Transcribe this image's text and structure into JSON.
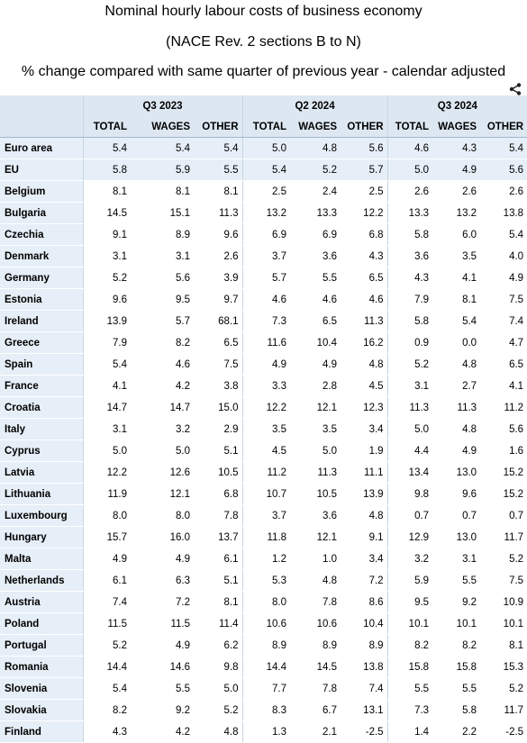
{
  "title": "Nominal hourly labour costs of business economy",
  "subtitle": "(NACE Rev. 2 sections B to N)",
  "unit_line": "% change compared with same quarter of previous year - calendar adjusted",
  "share_icon": "share-icon",
  "periods": [
    "Q3 2023",
    "Q2 2024",
    "Q3 2024"
  ],
  "columns": [
    "TOTAL",
    "WAGES",
    "OTHER"
  ],
  "rows": [
    {
      "name": "Euro area",
      "v": [
        "5.4",
        "5.4",
        "5.4",
        "5.0",
        "4.8",
        "5.6",
        "4.6",
        "4.3",
        "5.4"
      ]
    },
    {
      "name": "EU",
      "v": [
        "5.8",
        "5.9",
        "5.5",
        "5.4",
        "5.2",
        "5.7",
        "5.0",
        "4.9",
        "5.6"
      ]
    },
    {
      "name": "Belgium",
      "v": [
        "8.1",
        "8.1",
        "8.1",
        "2.5",
        "2.4",
        "2.5",
        "2.6",
        "2.6",
        "2.6"
      ]
    },
    {
      "name": "Bulgaria",
      "v": [
        "14.5",
        "15.1",
        "11.3",
        "13.2",
        "13.3",
        "12.2",
        "13.3",
        "13.2",
        "13.8"
      ]
    },
    {
      "name": "Czechia",
      "v": [
        "9.1",
        "8.9",
        "9.6",
        "6.9",
        "6.9",
        "6.8",
        "5.8",
        "6.0",
        "5.4"
      ]
    },
    {
      "name": "Denmark",
      "v": [
        "3.1",
        "3.1",
        "2.6",
        "3.7",
        "3.6",
        "4.3",
        "3.6",
        "3.5",
        "4.0"
      ]
    },
    {
      "name": "Germany",
      "v": [
        "5.2",
        "5.6",
        "3.9",
        "5.7",
        "5.5",
        "6.5",
        "4.3",
        "4.1",
        "4.9"
      ]
    },
    {
      "name": "Estonia",
      "v": [
        "9.6",
        "9.5",
        "9.7",
        "4.6",
        "4.6",
        "4.6",
        "7.9",
        "8.1",
        "7.5"
      ]
    },
    {
      "name": "Ireland",
      "v": [
        "13.9",
        "5.7",
        "68.1",
        "7.3",
        "6.5",
        "11.3",
        "5.8",
        "5.4",
        "7.4"
      ]
    },
    {
      "name": "Greece",
      "v": [
        "7.9",
        "8.2",
        "6.5",
        "11.6",
        "10.4",
        "16.2",
        "0.9",
        "0.0",
        "4.7"
      ]
    },
    {
      "name": "Spain",
      "v": [
        "5.4",
        "4.6",
        "7.5",
        "4.9",
        "4.9",
        "4.8",
        "5.2",
        "4.8",
        "6.5"
      ]
    },
    {
      "name": "France",
      "v": [
        "4.1",
        "4.2",
        "3.8",
        "3.3",
        "2.8",
        "4.5",
        "3.1",
        "2.7",
        "4.1"
      ]
    },
    {
      "name": "Croatia",
      "v": [
        "14.7",
        "14.7",
        "15.0",
        "12.2",
        "12.1",
        "12.3",
        "11.3",
        "11.3",
        "11.2"
      ]
    },
    {
      "name": "Italy",
      "v": [
        "3.1",
        "3.2",
        "2.9",
        "3.5",
        "3.5",
        "3.4",
        "5.0",
        "4.8",
        "5.6"
      ]
    },
    {
      "name": "Cyprus",
      "v": [
        "5.0",
        "5.0",
        "5.1",
        "4.5",
        "5.0",
        "1.9",
        "4.4",
        "4.9",
        "1.6"
      ]
    },
    {
      "name": "Latvia",
      "v": [
        "12.2",
        "12.6",
        "10.5",
        "11.2",
        "11.3",
        "11.1",
        "13.4",
        "13.0",
        "15.2"
      ]
    },
    {
      "name": "Lithuania",
      "v": [
        "11.9",
        "12.1",
        "6.8",
        "10.7",
        "10.5",
        "13.9",
        "9.8",
        "9.6",
        "15.2"
      ]
    },
    {
      "name": "Luxembourg",
      "v": [
        "8.0",
        "8.0",
        "7.8",
        "3.7",
        "3.6",
        "4.8",
        "0.7",
        "0.7",
        "0.7"
      ]
    },
    {
      "name": "Hungary",
      "v": [
        "15.7",
        "16.0",
        "13.7",
        "11.8",
        "12.1",
        "9.1",
        "12.9",
        "13.0",
        "11.7"
      ]
    },
    {
      "name": "Malta",
      "v": [
        "4.9",
        "4.9",
        "6.1",
        "1.2",
        "1.0",
        "3.4",
        "3.2",
        "3.1",
        "5.2"
      ]
    },
    {
      "name": "Netherlands",
      "v": [
        "6.1",
        "6.3",
        "5.1",
        "5.3",
        "4.8",
        "7.2",
        "5.9",
        "5.5",
        "7.5"
      ]
    },
    {
      "name": "Austria",
      "v": [
        "7.4",
        "7.2",
        "8.1",
        "8.0",
        "7.8",
        "8.6",
        "9.5",
        "9.2",
        "10.9"
      ]
    },
    {
      "name": "Poland",
      "v": [
        "11.5",
        "11.5",
        "11.4",
        "10.6",
        "10.6",
        "10.4",
        "10.1",
        "10.1",
        "10.1"
      ]
    },
    {
      "name": "Portugal",
      "v": [
        "5.2",
        "4.9",
        "6.2",
        "8.9",
        "8.9",
        "8.9",
        "8.2",
        "8.2",
        "8.1"
      ]
    },
    {
      "name": "Romania",
      "v": [
        "14.4",
        "14.6",
        "9.8",
        "14.4",
        "14.5",
        "13.8",
        "15.8",
        "15.8",
        "15.3"
      ]
    },
    {
      "name": "Slovenia",
      "v": [
        "5.4",
        "5.5",
        "5.0",
        "7.7",
        "7.8",
        "7.4",
        "5.5",
        "5.5",
        "5.2"
      ]
    },
    {
      "name": "Slovakia",
      "v": [
        "8.2",
        "9.2",
        "5.2",
        "8.3",
        "6.7",
        "13.1",
        "7.3",
        "5.8",
        "11.7"
      ]
    },
    {
      "name": "Finland",
      "v": [
        "4.3",
        "4.2",
        "4.8",
        "1.3",
        "2.1",
        "-2.5",
        "1.4",
        "2.2",
        "-2.5"
      ]
    }
  ]
}
